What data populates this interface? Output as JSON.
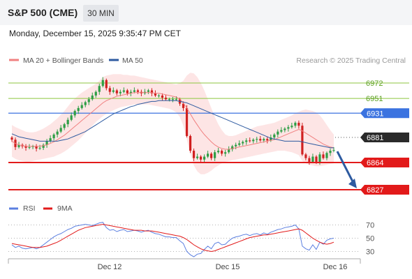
{
  "header": {
    "title": "S&P 500 (CME)",
    "timeframe": "30 MIN",
    "datetime": "Monday, December 15, 2025 9:35:47 PM CET"
  },
  "legend": {
    "ma20_label": "MA 20 + Bollinger Bands",
    "ma50_label": "MA 50",
    "copyright": "Research © 2025 Trading Central"
  },
  "colors": {
    "candle_up": "#2e9e45",
    "candle_down": "#d02020",
    "ma20": "#f08080",
    "bollinger_fill": "#fde0e0",
    "ma50": "#2d5aa0",
    "resistance": "#8cc63f",
    "pivot": "#3b73e0",
    "support": "#e21a1a",
    "price_tag": "#2a2a2a",
    "rsi": "#5b7fe0",
    "rsi_ma": "#e21a1a",
    "arrow": "#2d5aa0"
  },
  "chart_data": [
    {
      "type": "candlestick",
      "x_ticks": [
        "Dec 12",
        "Dec 15",
        "Dec 16"
      ],
      "ylim": [
        6810,
        6990
      ],
      "levels": [
        {
          "value": 6972,
          "label": "6972",
          "kind": "resistance"
        },
        {
          "value": 6951,
          "label": "6951",
          "kind": "resistance"
        },
        {
          "value": 6931,
          "label": "6931",
          "kind": "pivot"
        },
        {
          "value": 6881,
          "label": "6881",
          "kind": "last_price"
        },
        {
          "value": 6864,
          "label": "6864",
          "kind": "support"
        },
        {
          "value": 6827,
          "label": "6827",
          "kind": "support"
        }
      ],
      "close": [
        6895,
        6885,
        6888,
        6886,
        6884,
        6885,
        6886,
        6883,
        6884,
        6888,
        6893,
        6897,
        6902,
        6906,
        6911,
        6916,
        6922,
        6928,
        6934,
        6938,
        6942,
        6946,
        6950,
        6955,
        6960,
        6968,
        6976,
        6965,
        6960,
        6962,
        6958,
        6960,
        6962,
        6958,
        6960,
        6962,
        6960,
        6958,
        6960,
        6962,
        6958,
        6955,
        6955,
        6952,
        6950,
        6950,
        6950,
        6950,
        6944,
        6938,
        6900,
        6880,
        6870,
        6872,
        6868,
        6872,
        6876,
        6870,
        6878,
        6880,
        6876,
        6878,
        6882,
        6886,
        6888,
        6890,
        6892,
        6894,
        6893,
        6895,
        6896,
        6894,
        6896,
        6894,
        6898,
        6902,
        6906,
        6908,
        6910,
        6912,
        6914,
        6918,
        6914,
        6875,
        6870,
        6865,
        6872,
        6865,
        6875,
        6870,
        6877,
        6880,
        6881
      ],
      "ma20": [
        6893,
        6890,
        6888,
        6887,
        6886,
        6886,
        6886,
        6886,
        6886,
        6887,
        6888,
        6890,
        6892,
        6895,
        6898,
        6901,
        6905,
        6909,
        6913,
        6917,
        6921,
        6925,
        6929,
        6933,
        6937,
        6941,
        6945,
        6948,
        6950,
        6952,
        6954,
        6955,
        6956,
        6957,
        6958,
        6959,
        6959,
        6959,
        6959,
        6959,
        6959,
        6958,
        6958,
        6957,
        6956,
        6955,
        6954,
        6953,
        6950,
        6945,
        6938,
        6930,
        6922,
        6915,
        6908,
        6902,
        6897,
        6892,
        6888,
        6885,
        6883,
        6882,
        6882,
        6883,
        6884,
        6885,
        6886,
        6887,
        6888,
        6889,
        6890,
        6891,
        6892,
        6893,
        6894,
        6895,
        6897,
        6899,
        6901,
        6903,
        6905,
        6907,
        6909,
        6907,
        6904,
        6901,
        6898,
        6895,
        6892,
        6889,
        6887,
        6885,
        6884
      ],
      "bb_upper": [
        6915,
        6912,
        6910,
        6908,
        6906,
        6905,
        6905,
        6906,
        6908,
        6910,
        6913,
        6916,
        6920,
        6924,
        6929,
        6934,
        6940,
        6946,
        6951,
        6955,
        6959,
        6962,
        6965,
        6968,
        6971,
        6975,
        6980,
        6982,
        6983,
        6984,
        6984,
        6984,
        6983,
        6983,
        6982,
        6982,
        6981,
        6980,
        6979,
        6978,
        6977,
        6976,
        6975,
        6974,
        6973,
        6972,
        6971,
        6970,
        6972,
        6975,
        6982,
        6986,
        6985,
        6980,
        6972,
        6962,
        6950,
        6938,
        6926,
        6916,
        6908,
        6902,
        6900,
        6900,
        6901,
        6903,
        6905,
        6907,
        6909,
        6911,
        6913,
        6914,
        6915,
        6916,
        6917,
        6918,
        6920,
        6922,
        6924,
        6926,
        6928,
        6931,
        6933,
        6935,
        6936,
        6935,
        6934,
        6932,
        6928,
        6922,
        6915,
        6908,
        6902
      ],
      "bb_lower": [
        6872,
        6869,
        6867,
        6866,
        6865,
        6865,
        6866,
        6867,
        6868,
        6869,
        6870,
        6871,
        6872,
        6874,
        6876,
        6879,
        6882,
        6886,
        6890,
        6894,
        6899,
        6904,
        6909,
        6914,
        6919,
        6923,
        6927,
        6930,
        6933,
        6935,
        6937,
        6939,
        6940,
        6941,
        6942,
        6943,
        6943,
        6943,
        6943,
        6943,
        6942,
        6941,
        6940,
        6939,
        6938,
        6937,
        6935,
        6932,
        6926,
        6914,
        6895,
        6876,
        6860,
        6852,
        6848,
        6848,
        6850,
        6853,
        6857,
        6860,
        6863,
        6865,
        6866,
        6867,
        6868,
        6869,
        6870,
        6871,
        6872,
        6873,
        6874,
        6875,
        6876,
        6877,
        6878,
        6879,
        6880,
        6880,
        6880,
        6879,
        6878,
        6876,
        6874,
        6866,
        6863,
        6861,
        6860,
        6859,
        6859,
        6860,
        6861,
        6862,
        6863
      ],
      "ma50": [
        6903,
        6901,
        6899,
        6898,
        6897,
        6896,
        6895,
        6894,
        6893,
        6893,
        6893,
        6893,
        6893,
        6893,
        6894,
        6895,
        6896,
        6898,
        6900,
        6902,
        6904,
        6906,
        6909,
        6912,
        6915,
        6918,
        6921,
        6924,
        6927,
        6930,
        6932,
        6934,
        6936,
        6938,
        6940,
        6941,
        6943,
        6944,
        6945,
        6946,
        6947,
        6947,
        6948,
        6948,
        6948,
        6948,
        6948,
        6948,
        6947,
        6946,
        6945,
        6943,
        6941,
        6939,
        6937,
        6935,
        6933,
        6931,
        6929,
        6927,
        6925,
        6923,
        6921,
        6919,
        6917,
        6915,
        6913,
        6911,
        6909,
        6907,
        6905,
        6903,
        6901,
        6899,
        6897,
        6896,
        6895,
        6894,
        6893,
        6893,
        6893,
        6893,
        6893,
        6892,
        6891,
        6890,
        6889,
        6888,
        6887,
        6886,
        6885,
        6884,
        6884
      ]
    },
    {
      "type": "line",
      "name": "RSI",
      "ylim": [
        20,
        80
      ],
      "y_ticks": [
        70,
        50,
        30
      ],
      "series": [
        {
          "name": "RSI",
          "values": [
            40,
            36,
            38,
            35,
            34,
            35,
            36,
            34,
            36,
            40,
            44,
            48,
            52,
            55,
            57,
            60,
            63,
            65,
            68,
            69,
            70,
            71,
            70,
            69,
            71,
            73,
            74,
            66,
            62,
            63,
            60,
            62,
            63,
            60,
            61,
            62,
            61,
            59,
            61,
            62,
            59,
            57,
            56,
            54,
            52,
            52,
            51,
            51,
            46,
            42,
            30,
            25,
            22,
            26,
            27,
            33,
            38,
            34,
            42,
            44,
            40,
            41,
            46,
            50,
            52,
            53,
            55,
            56,
            54,
            56,
            57,
            55,
            58,
            56,
            59,
            61,
            63,
            64,
            66,
            67,
            68,
            70,
            64,
            38,
            34,
            32,
            40,
            33,
            44,
            41,
            47,
            49,
            50
          ]
        },
        {
          "name": "9MA",
          "values": [
            42,
            41,
            40,
            39,
            38,
            37,
            36,
            36,
            36,
            37,
            38,
            40,
            42,
            44,
            47,
            50,
            53,
            56,
            59,
            62,
            64,
            66,
            67,
            68,
            69,
            70,
            71,
            70,
            69,
            68,
            67,
            66,
            65,
            64,
            63,
            62,
            62,
            62,
            61,
            61,
            61,
            60,
            59,
            58,
            57,
            56,
            55,
            54,
            53,
            51,
            48,
            44,
            40,
            37,
            34,
            32,
            31,
            30,
            31,
            33,
            35,
            37,
            39,
            41,
            43,
            45,
            47,
            49,
            51,
            52,
            53,
            54,
            55,
            55,
            56,
            57,
            58,
            59,
            60,
            61,
            62,
            63,
            64,
            62,
            58,
            54,
            50,
            47,
            44,
            42,
            41,
            42,
            44
          ]
        }
      ]
    }
  ]
}
